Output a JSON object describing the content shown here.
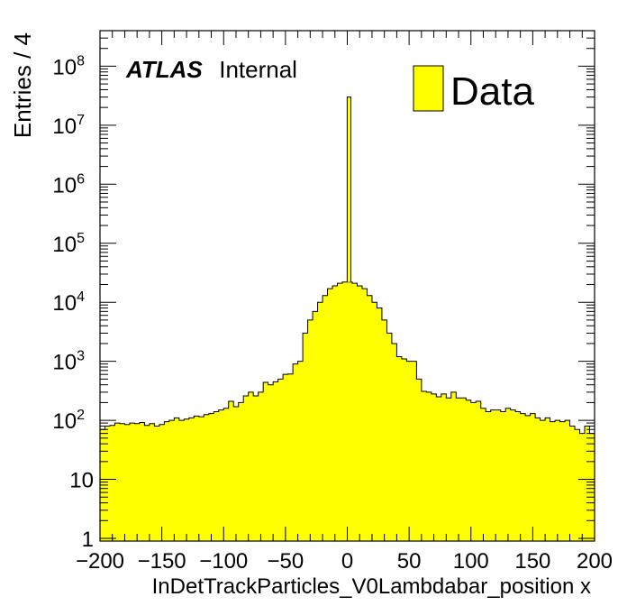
{
  "chart_data": {
    "type": "bar",
    "xlabel": "InDetTrackParticles_V0Lambdabar_position x",
    "ylabel": "Entries / 4",
    "xlim": [
      -200,
      200
    ],
    "ylim": [
      0.9,
      400000000
    ],
    "y_scale": "log",
    "bin_width": 4,
    "x_ticks": [
      -200,
      -150,
      -100,
      -50,
      0,
      50,
      100,
      150,
      200
    ],
    "x_tick_labels": [
      "−200",
      "−150",
      "−100",
      "−50",
      "0",
      "50",
      "100",
      "150",
      "200"
    ],
    "y_ticks": [
      {
        "value": 1,
        "base": "1",
        "exp": ""
      },
      {
        "value": 10,
        "base": "10",
        "exp": ""
      },
      {
        "value": 100,
        "base": "10",
        "exp": "2"
      },
      {
        "value": 1000,
        "base": "10",
        "exp": "3"
      },
      {
        "value": 10000,
        "base": "10",
        "exp": "4"
      },
      {
        "value": 100000,
        "base": "10",
        "exp": "5"
      },
      {
        "value": 1000000,
        "base": "10",
        "exp": "6"
      },
      {
        "value": 10000000,
        "base": "10",
        "exp": "7"
      },
      {
        "value": 100000000,
        "base": "10",
        "exp": "8"
      }
    ],
    "fill_color": "#ffff00",
    "line_color": "#000000",
    "legend": {
      "label": "Data",
      "position": "top-right"
    },
    "atlas_label": {
      "bold": "ATLAS",
      "text": "Internal"
    },
    "series": [
      {
        "x": [
          -198,
          -194,
          -190,
          -186,
          -182,
          -178,
          -174,
          -170,
          -166,
          -162,
          -158,
          -154,
          -150,
          -146,
          -142,
          -138,
          -134,
          -130,
          -126,
          -122,
          -118,
          -114,
          -110,
          -106,
          -102,
          -98,
          -94,
          -90,
          -86,
          -82,
          -78,
          -74,
          -70,
          -66,
          -62,
          -58,
          -54,
          -50,
          -46,
          -42,
          -38,
          -34,
          -30,
          -26,
          -22,
          -18,
          -14,
          -10,
          -6,
          -2,
          2,
          6,
          10,
          14,
          18,
          22,
          26,
          30,
          34,
          38,
          42,
          46,
          50,
          54,
          58,
          62,
          66,
          70,
          74,
          78,
          82,
          86,
          90,
          94,
          98,
          102,
          106,
          110,
          114,
          118,
          122,
          126,
          130,
          134,
          138,
          142,
          146,
          150,
          154,
          158,
          162,
          166,
          170,
          174,
          178,
          182,
          186,
          190,
          194,
          198
        ],
        "values": [
          70,
          80,
          82,
          90,
          88,
          85,
          90,
          88,
          92,
          82,
          88,
          80,
          85,
          95,
          100,
          110,
          100,
          105,
          110,
          118,
          115,
          125,
          130,
          140,
          150,
          160,
          210,
          170,
          200,
          260,
          300,
          260,
          300,
          440,
          400,
          450,
          500,
          600,
          610,
          900,
          1000,
          3000,
          5000,
          7000,
          10000,
          13000,
          17000,
          19000,
          21000,
          22000,
          22000,
          21000,
          19000,
          17000,
          13000,
          10000,
          8000,
          5000,
          3000,
          2000,
          1200,
          1100,
          1000,
          1000,
          500,
          310,
          300,
          280,
          250,
          280,
          240,
          300,
          240,
          240,
          220,
          200,
          210,
          160,
          140,
          150,
          150,
          140,
          160,
          150,
          140,
          130,
          120,
          130,
          110,
          100,
          110,
          95,
          100,
          95,
          100,
          80,
          70,
          60,
          80,
          60
        ],
        "spike": {
          "x": 2,
          "value": 30000000
        }
      }
    ]
  }
}
